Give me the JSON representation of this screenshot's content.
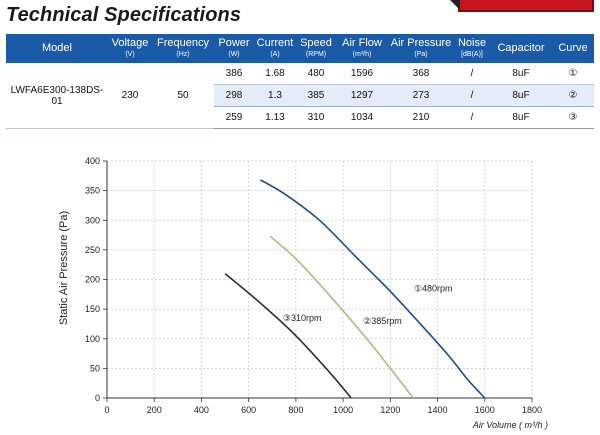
{
  "page": {
    "title": "Technical Specifications"
  },
  "table": {
    "headers": [
      {
        "name": "Model",
        "unit": ""
      },
      {
        "name": "Voltage",
        "unit": "(V)"
      },
      {
        "name": "Frequency",
        "unit": "(Hz)"
      },
      {
        "name": "Power",
        "unit": "(W)"
      },
      {
        "name": "Current",
        "unit": "(A)"
      },
      {
        "name": "Speed",
        "unit": "(RPM)"
      },
      {
        "name": "Air Flow",
        "unit": "(m³/h)"
      },
      {
        "name": "Air Pressure",
        "unit": "(Pa)"
      },
      {
        "name": "Noise",
        "unit": "[dB(A)]"
      },
      {
        "name": "Capacitor",
        "unit": ""
      },
      {
        "name": "Curve",
        "unit": ""
      }
    ],
    "model": "LWFA6E300-138DS-01",
    "voltage": "230",
    "frequency": "50",
    "rows": [
      {
        "power": "386",
        "current": "1.68",
        "speed": "480",
        "air_flow": "1596",
        "air_pressure": "368",
        "noise": "/",
        "capacitor": "8uF",
        "curve": "①"
      },
      {
        "power": "298",
        "current": "1.3",
        "speed": "385",
        "air_flow": "1297",
        "air_pressure": "273",
        "noise": "/",
        "capacitor": "8uF",
        "curve": "②"
      },
      {
        "power": "259",
        "current": "1.13",
        "speed": "310",
        "air_flow": "1034",
        "air_pressure": "210",
        "noise": "/",
        "capacitor": "8uF",
        "curve": "③"
      }
    ]
  },
  "chart_data": {
    "type": "line",
    "title": "",
    "xlabel": "Air Volume ( m³/h )",
    "ylabel": "Static Air Pressure  (Pa)",
    "xlim": [
      0,
      1800
    ],
    "ylim": [
      0,
      400
    ],
    "xticks": [
      "0",
      "200",
      "400",
      "600",
      "800",
      "1000",
      "1200",
      "1400",
      "1600",
      "1800"
    ],
    "yticks": [
      "0",
      "50",
      "100",
      "150",
      "200",
      "250",
      "300",
      "350",
      "400"
    ],
    "grid": "dashed",
    "series": [
      {
        "name": "①480rpm",
        "color": "#1c4d8c",
        "x": [
          650,
          750,
          900,
          1050,
          1200,
          1350,
          1450,
          1530,
          1600
        ],
        "y": [
          368,
          345,
          300,
          240,
          180,
          115,
          70,
          30,
          0
        ]
      },
      {
        "name": "②385rpm",
        "color": "#9dc47f",
        "x": [
          690,
          800,
          950,
          1100,
          1200,
          1297
        ],
        "y": [
          273,
          235,
          170,
          100,
          50,
          0
        ]
      },
      {
        "name": "③310rpm",
        "color": "#2e2e2e",
        "x": [
          500,
          650,
          800,
          950,
          1034
        ],
        "y": [
          210,
          160,
          105,
          40,
          0
        ]
      }
    ],
    "annotations": [
      {
        "text": "①480rpm",
        "x": 1300,
        "y": 180
      },
      {
        "text": "②385rpm",
        "x": 1085,
        "y": 125
      },
      {
        "text": "③310rpm",
        "x": 745,
        "y": 130
      }
    ]
  }
}
